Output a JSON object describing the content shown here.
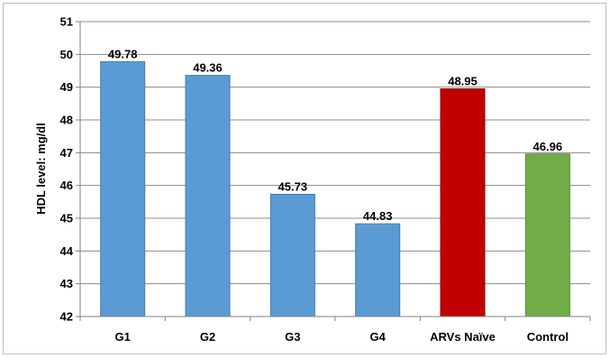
{
  "chart_data": {
    "type": "bar",
    "categories": [
      "G1",
      "G2",
      "G3",
      "G4",
      "ARVs Naïve",
      "Control"
    ],
    "values": [
      49.78,
      49.36,
      45.73,
      44.83,
      48.95,
      46.96
    ],
    "data_labels": [
      "49.78",
      "49.36",
      "45.73",
      "44.83",
      "48.95",
      "46.96"
    ],
    "bar_colors": [
      "#5b9bd5",
      "#5b9bd5",
      "#5b9bd5",
      "#5b9bd5",
      "#c00000",
      "#70ad47"
    ],
    "title": "",
    "xlabel": "",
    "ylabel": "HDL  level: mg/dl",
    "ylim": [
      42,
      51
    ],
    "yticks": [
      "42",
      "43",
      "44",
      "45",
      "46",
      "47",
      "48",
      "49",
      "50",
      "51"
    ],
    "grid": true,
    "legend": "none"
  }
}
